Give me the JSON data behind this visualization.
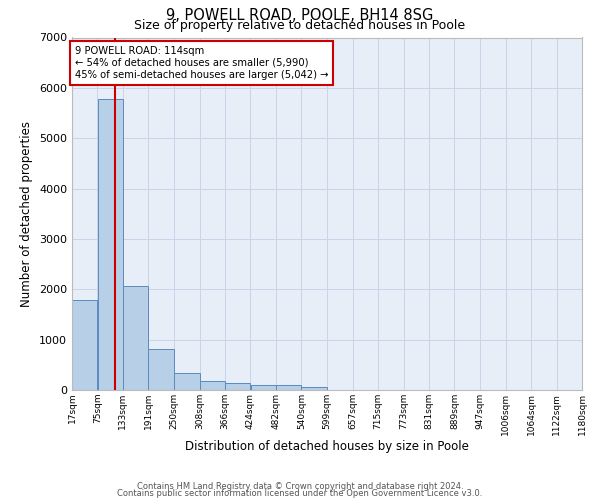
{
  "title1": "9, POWELL ROAD, POOLE, BH14 8SG",
  "title2": "Size of property relative to detached houses in Poole",
  "xlabel": "Distribution of detached houses by size in Poole",
  "ylabel": "Number of detached properties",
  "annotation_line1": "9 POWELL ROAD: 114sqm",
  "annotation_line2": "← 54% of detached houses are smaller (5,990)",
  "annotation_line3": "45% of semi-detached houses are larger (5,042) →",
  "property_size": 114,
  "bar_edges": [
    17,
    75,
    133,
    191,
    250,
    308,
    366,
    424,
    482,
    540,
    599,
    657,
    715,
    773,
    831,
    889,
    947,
    1006,
    1064,
    1122,
    1180
  ],
  "bar_heights": [
    1780,
    5780,
    2060,
    820,
    340,
    185,
    130,
    105,
    95,
    65,
    0,
    0,
    0,
    0,
    0,
    0,
    0,
    0,
    0,
    0
  ],
  "bar_color": "#b8cfe8",
  "bar_edge_color": "#5a8bbf",
  "red_line_color": "#cc0000",
  "annotation_box_color": "#cc0000",
  "grid_color": "#c8d4e8",
  "background_color": "#e8eef8",
  "ylim": [
    0,
    7000
  ],
  "yticks": [
    0,
    1000,
    2000,
    3000,
    4000,
    5000,
    6000,
    7000
  ],
  "footer1": "Contains HM Land Registry data © Crown copyright and database right 2024.",
  "footer2": "Contains public sector information licensed under the Open Government Licence v3.0."
}
